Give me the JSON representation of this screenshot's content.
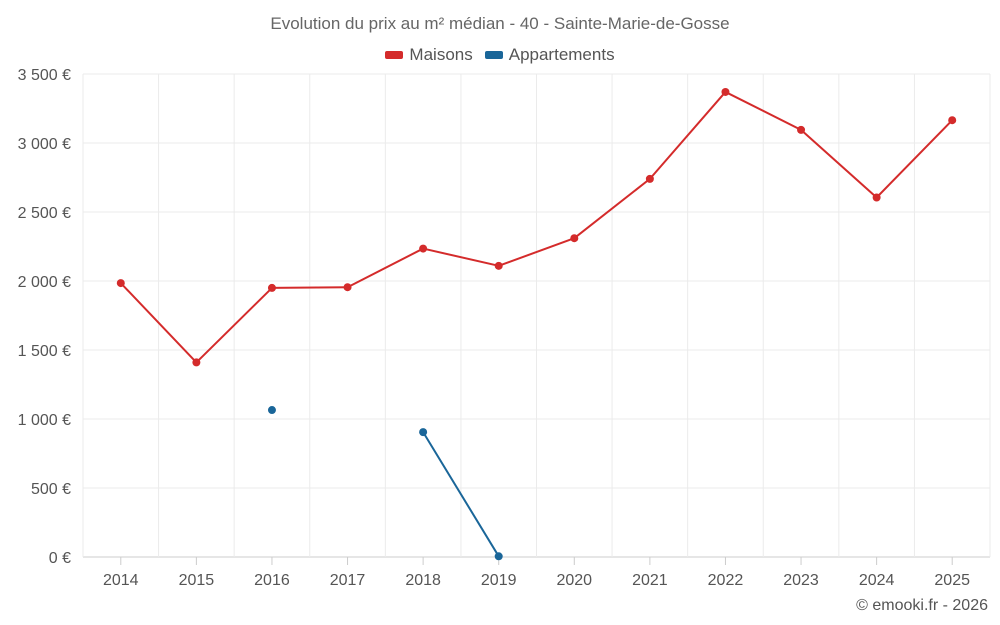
{
  "chart_data": {
    "type": "line",
    "title": "Evolution du prix au m² médian - 40 - Sainte-Marie-de-Gosse",
    "xlabel": "",
    "ylabel": "",
    "categories": [
      "2014",
      "2015",
      "2016",
      "2017",
      "2018",
      "2019",
      "2020",
      "2021",
      "2022",
      "2023",
      "2024",
      "2025"
    ],
    "ylim": [
      0,
      3500
    ],
    "y_ticks": [
      0,
      500,
      1000,
      1500,
      2000,
      2500,
      3000,
      3500
    ],
    "y_tick_labels": [
      "0 €",
      "500 €",
      "1 000 €",
      "1 500 €",
      "2 000 €",
      "2 500 €",
      "3 000 €",
      "3 500 €"
    ],
    "grid": true,
    "legend_position": "top-center",
    "series": [
      {
        "name": "Maisons",
        "color": "#d42b2b",
        "values": [
          1985,
          1410,
          1950,
          1955,
          2235,
          2110,
          2310,
          2740,
          3370,
          3095,
          2605,
          3165
        ]
      },
      {
        "name": "Appartements",
        "color": "#1a6699",
        "values": [
          null,
          null,
          1065,
          null,
          905,
          5,
          null,
          null,
          null,
          null,
          null,
          null
        ]
      }
    ]
  },
  "credit": "© emooki.fr - 2026"
}
